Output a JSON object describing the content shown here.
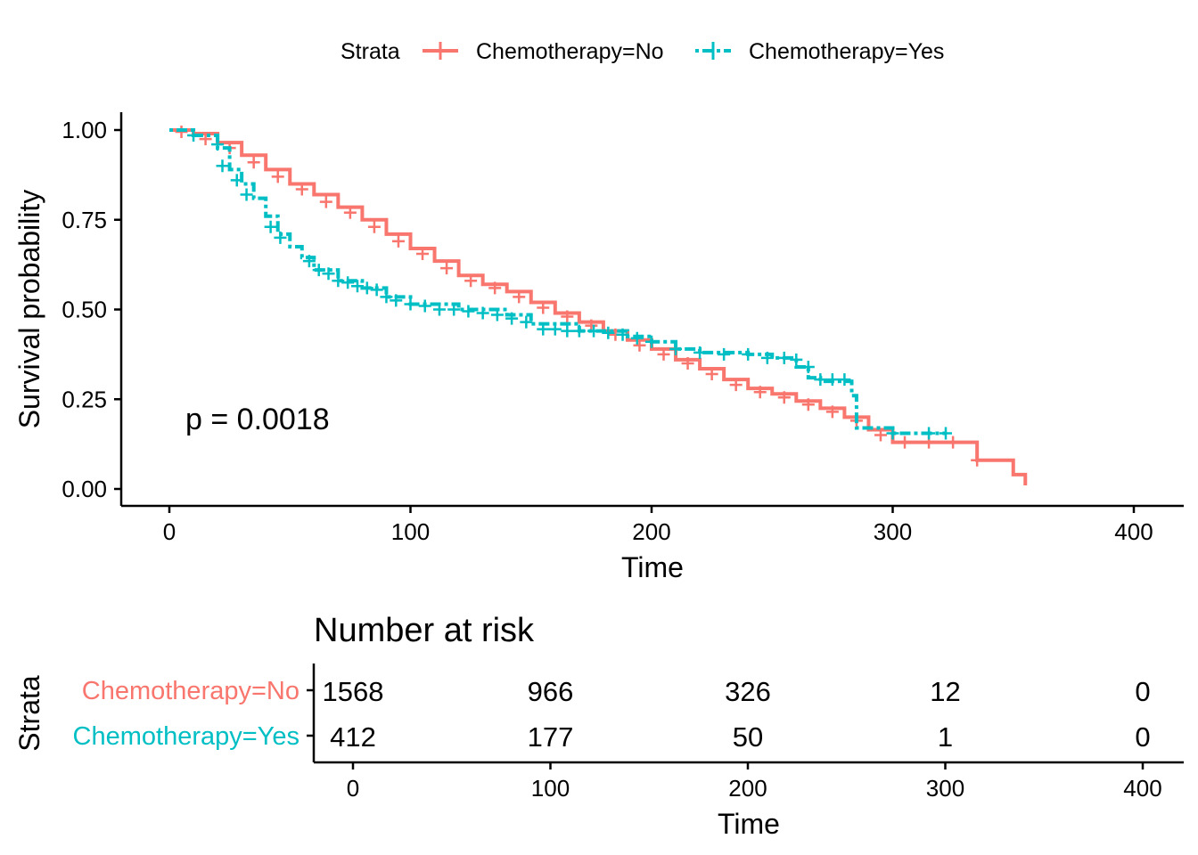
{
  "legend": {
    "title": "Strata",
    "items": [
      {
        "label": "Chemotherapy=No"
      },
      {
        "label": "Chemotherapy=Yes"
      }
    ]
  },
  "colors": {
    "no": "#F8766D",
    "yes": "#00BFC4"
  },
  "chart_data": [
    {
      "type": "line",
      "subtype": "kaplan-meier",
      "xlabel": "Time",
      "ylabel": "Survival probability",
      "xlim": [
        0,
        400
      ],
      "ylim": [
        0,
        1
      ],
      "xticks": [
        "0",
        "100",
        "200",
        "300",
        "400"
      ],
      "yticks": [
        "0.00",
        "0.25",
        "0.50",
        "0.75",
        "1.00"
      ],
      "annotation": "p = 0.0018",
      "grid": false,
      "legend_position": "top",
      "series": [
        {
          "name": "Chemotherapy=No",
          "x": [
            0,
            10,
            20,
            30,
            40,
            50,
            60,
            70,
            80,
            90,
            100,
            110,
            120,
            130,
            140,
            150,
            160,
            170,
            180,
            190,
            200,
            210,
            220,
            230,
            240,
            250,
            260,
            270,
            280,
            290,
            300,
            310,
            320,
            335,
            340,
            350,
            355
          ],
          "y": [
            1.0,
            0.99,
            0.965,
            0.93,
            0.89,
            0.85,
            0.82,
            0.785,
            0.75,
            0.71,
            0.67,
            0.635,
            0.595,
            0.57,
            0.55,
            0.52,
            0.49,
            0.465,
            0.44,
            0.415,
            0.39,
            0.36,
            0.335,
            0.305,
            0.28,
            0.265,
            0.245,
            0.225,
            0.2,
            0.165,
            0.13,
            0.13,
            0.13,
            0.08,
            0.08,
            0.04,
            0.01
          ],
          "censor_x": [
            5,
            15,
            25,
            35,
            45,
            55,
            65,
            75,
            85,
            95,
            105,
            115,
            125,
            135,
            145,
            155,
            165,
            175,
            185,
            195,
            205,
            215,
            225,
            235,
            245,
            255,
            265,
            275,
            285,
            295,
            305,
            315,
            325,
            335
          ],
          "censor_y": [
            0.995,
            0.975,
            0.95,
            0.91,
            0.87,
            0.835,
            0.8,
            0.77,
            0.73,
            0.69,
            0.655,
            0.615,
            0.58,
            0.56,
            0.535,
            0.505,
            0.48,
            0.455,
            0.43,
            0.4,
            0.375,
            0.35,
            0.32,
            0.29,
            0.27,
            0.255,
            0.235,
            0.215,
            0.19,
            0.15,
            0.13,
            0.13,
            0.13,
            0.08
          ]
        },
        {
          "name": "Chemotherapy=Yes",
          "x": [
            0,
            10,
            20,
            25,
            30,
            35,
            40,
            45,
            50,
            55,
            60,
            70,
            80,
            90,
            100,
            120,
            140,
            150,
            170,
            190,
            200,
            210,
            220,
            240,
            250,
            260,
            265,
            270,
            283,
            285,
            300,
            310,
            322
          ],
          "y": [
            1.0,
            0.985,
            0.95,
            0.89,
            0.85,
            0.81,
            0.76,
            0.71,
            0.675,
            0.645,
            0.61,
            0.58,
            0.56,
            0.535,
            0.515,
            0.5,
            0.485,
            0.46,
            0.44,
            0.425,
            0.41,
            0.39,
            0.38,
            0.375,
            0.365,
            0.34,
            0.31,
            0.3,
            0.26,
            0.17,
            0.155,
            0.155,
            0.155
          ],
          "censor_x": [
            10,
            20,
            22,
            28,
            32,
            42,
            46,
            58,
            62,
            66,
            70,
            74,
            78,
            82,
            86,
            90,
            94,
            100,
            106,
            112,
            118,
            124,
            130,
            136,
            142,
            148,
            155,
            160,
            165,
            170,
            176,
            182,
            188,
            194,
            200,
            210,
            220,
            230,
            240,
            248,
            255,
            260,
            265,
            270,
            275,
            280,
            300,
            315,
            322
          ],
          "censor_y": [
            0.985,
            0.96,
            0.9,
            0.86,
            0.82,
            0.73,
            0.7,
            0.635,
            0.61,
            0.6,
            0.58,
            0.575,
            0.565,
            0.56,
            0.555,
            0.535,
            0.525,
            0.515,
            0.51,
            0.5,
            0.5,
            0.495,
            0.49,
            0.485,
            0.475,
            0.465,
            0.445,
            0.445,
            0.44,
            0.44,
            0.44,
            0.435,
            0.43,
            0.42,
            0.41,
            0.39,
            0.38,
            0.375,
            0.375,
            0.365,
            0.365,
            0.36,
            0.34,
            0.305,
            0.305,
            0.305,
            0.155,
            0.155,
            0.155
          ]
        }
      ]
    },
    {
      "type": "table",
      "title": "Number at risk",
      "ylabel": "Strata",
      "xlabel": "Time",
      "xlim": [
        0,
        400
      ],
      "xticks": [
        "0",
        "100",
        "200",
        "300",
        "400"
      ],
      "times": [
        0,
        100,
        200,
        300,
        400
      ],
      "rows": [
        {
          "name": "Chemotherapy=No",
          "values": [
            "1568",
            "966",
            "326",
            "12",
            "0"
          ]
        },
        {
          "name": "Chemotherapy=Yes",
          "values": [
            "412",
            "177",
            "50",
            "1",
            "0"
          ]
        }
      ]
    }
  ]
}
